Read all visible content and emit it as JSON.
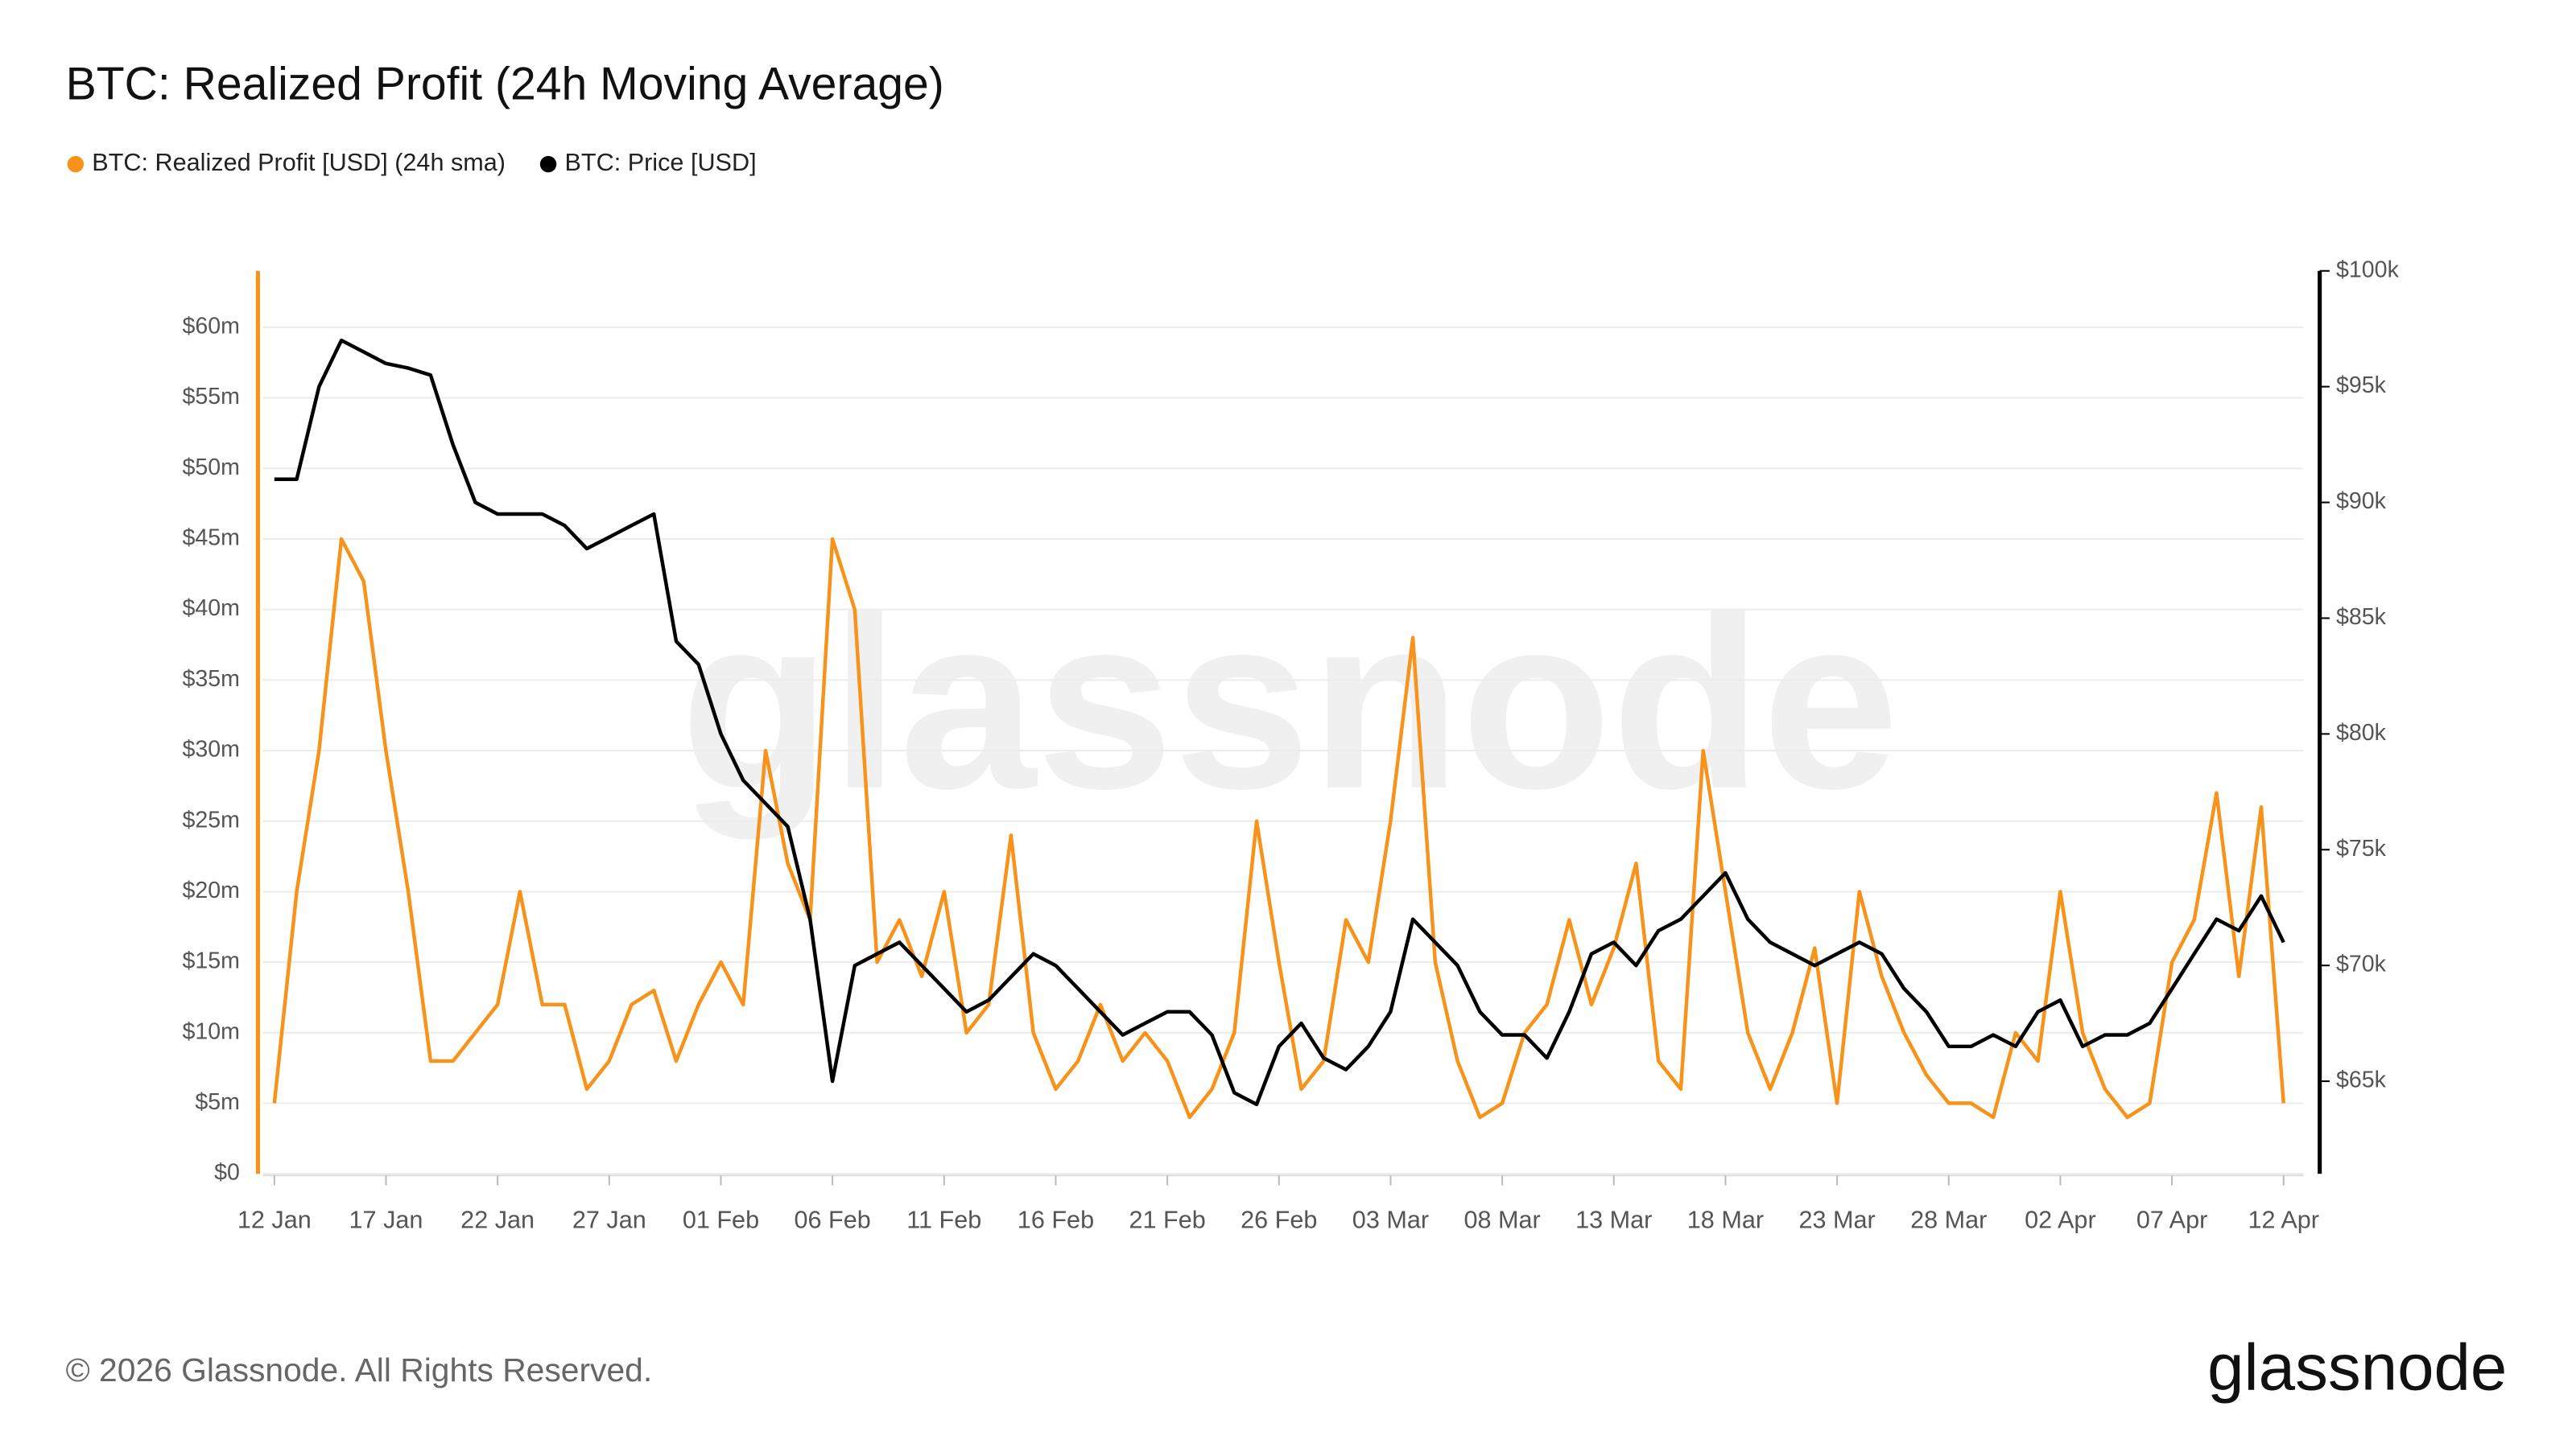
{
  "chart_data": {
    "type": "line",
    "title": "BTC: Realized Profit (24h Moving Average)",
    "watermark": "glassnode",
    "footer": "© 2026 Glassnode. All Rights Reserved.",
    "logo": "glassnode",
    "categories": [
      "12 Jan",
      null,
      null,
      null,
      null,
      "17 Jan",
      null,
      null,
      null,
      null,
      "22 Jan",
      null,
      null,
      null,
      null,
      "27 Jan",
      null,
      null,
      null,
      null,
      "01 Feb",
      null,
      null,
      null,
      null,
      "06 Feb",
      null,
      null,
      null,
      null,
      "11 Feb",
      null,
      null,
      null,
      null,
      "16 Feb",
      null,
      null,
      null,
      null,
      "21 Feb",
      null,
      null,
      null,
      null,
      "26 Feb",
      null,
      null,
      null,
      null,
      "03 Mar",
      null,
      null,
      null,
      null,
      "08 Mar",
      null,
      null,
      null,
      null,
      "13 Mar",
      null,
      null,
      null,
      null,
      "18 Mar",
      null,
      null,
      null,
      null,
      "23 Mar",
      null,
      null,
      null,
      null,
      "28 Mar",
      null,
      null,
      null,
      null,
      "02 Apr",
      null,
      null,
      null,
      null,
      "07 Apr",
      null,
      null,
      null,
      null,
      "12 Apr"
    ],
    "series": [
      {
        "name": "BTC: Realized Profit [USD] (24h sma)",
        "color": "#f7931a",
        "axis": "y",
        "values": [
          5000000,
          20000000,
          30000000,
          45000000,
          42000000,
          30000000,
          20000000,
          8000000,
          8000000,
          10000000,
          12000000,
          20000000,
          12000000,
          12000000,
          6000000,
          8000000,
          12000000,
          13000000,
          8000000,
          12000000,
          15000000,
          12000000,
          30000000,
          22000000,
          18000000,
          45000000,
          40000000,
          15000000,
          18000000,
          14000000,
          20000000,
          10000000,
          12000000,
          24000000,
          10000000,
          6000000,
          8000000,
          12000000,
          8000000,
          10000000,
          8000000,
          4000000,
          6000000,
          10000000,
          25000000,
          15000000,
          6000000,
          8000000,
          18000000,
          15000000,
          25000000,
          38000000,
          15000000,
          8000000,
          4000000,
          5000000,
          10000000,
          12000000,
          18000000,
          12000000,
          16000000,
          22000000,
          8000000,
          6000000,
          30000000,
          20000000,
          10000000,
          6000000,
          10000000,
          16000000,
          5000000,
          20000000,
          14000000,
          10000000,
          7000000,
          5000000,
          5000000,
          4000000,
          10000000,
          8000000,
          20000000,
          10000000,
          6000000,
          4000000,
          5000000,
          15000000,
          18000000,
          27000000,
          14000000,
          26000000,
          5000000
        ]
      },
      {
        "name": "BTC: Price [USD]",
        "color": "#000000",
        "axis": "y2",
        "values": [
          91000,
          91000,
          95000,
          97000,
          96500,
          96000,
          95800,
          95500,
          92500,
          90000,
          89500,
          89500,
          89500,
          89000,
          88000,
          88500,
          89000,
          89500,
          84000,
          83000,
          80000,
          78000,
          77000,
          76000,
          72000,
          65000,
          70000,
          70500,
          71000,
          70000,
          69000,
          68000,
          68500,
          69500,
          70500,
          70000,
          69000,
          68000,
          67000,
          67500,
          68000,
          68000,
          67000,
          64500,
          64000,
          66500,
          67500,
          66000,
          65500,
          66500,
          68000,
          72000,
          71000,
          70000,
          68000,
          67000,
          67000,
          66000,
          68000,
          70500,
          71000,
          70000,
          71500,
          72000,
          73000,
          74000,
          72000,
          71000,
          70500,
          70000,
          70500,
          71000,
          70500,
          69000,
          68000,
          66500,
          66500,
          67000,
          66500,
          68000,
          68500,
          66500,
          67000,
          67000,
          67500,
          69000,
          70500,
          72000,
          71500,
          73000,
          71000
        ]
      }
    ],
    "ylim": [
      0,
      64000000
    ],
    "yticks": [
      {
        "value": 0,
        "label": "$0"
      },
      {
        "value": 5000000,
        "label": "$5m"
      },
      {
        "value": 10000000,
        "label": "$10m"
      },
      {
        "value": 15000000,
        "label": "$15m"
      },
      {
        "value": 20000000,
        "label": "$20m"
      },
      {
        "value": 25000000,
        "label": "$25m"
      },
      {
        "value": 30000000,
        "label": "$30m"
      },
      {
        "value": 35000000,
        "label": "$35m"
      },
      {
        "value": 40000000,
        "label": "$40m"
      },
      {
        "value": 45000000,
        "label": "$45m"
      },
      {
        "value": 50000000,
        "label": "$50m"
      },
      {
        "value": 55000000,
        "label": "$55m"
      },
      {
        "value": 60000000,
        "label": "$60m"
      }
    ],
    "y2lim": [
      61000,
      100000
    ],
    "y2ticks": [
      {
        "value": 65000,
        "label": "$65k"
      },
      {
        "value": 70000,
        "label": "$70k"
      },
      {
        "value": 75000,
        "label": "$75k"
      },
      {
        "value": 80000,
        "label": "$80k"
      },
      {
        "value": 85000,
        "label": "$85k"
      },
      {
        "value": 90000,
        "label": "$90k"
      },
      {
        "value": 95000,
        "label": "$95k"
      },
      {
        "value": 100000,
        "label": "$100k"
      }
    ],
    "grid": true,
    "legend": "top-left"
  }
}
